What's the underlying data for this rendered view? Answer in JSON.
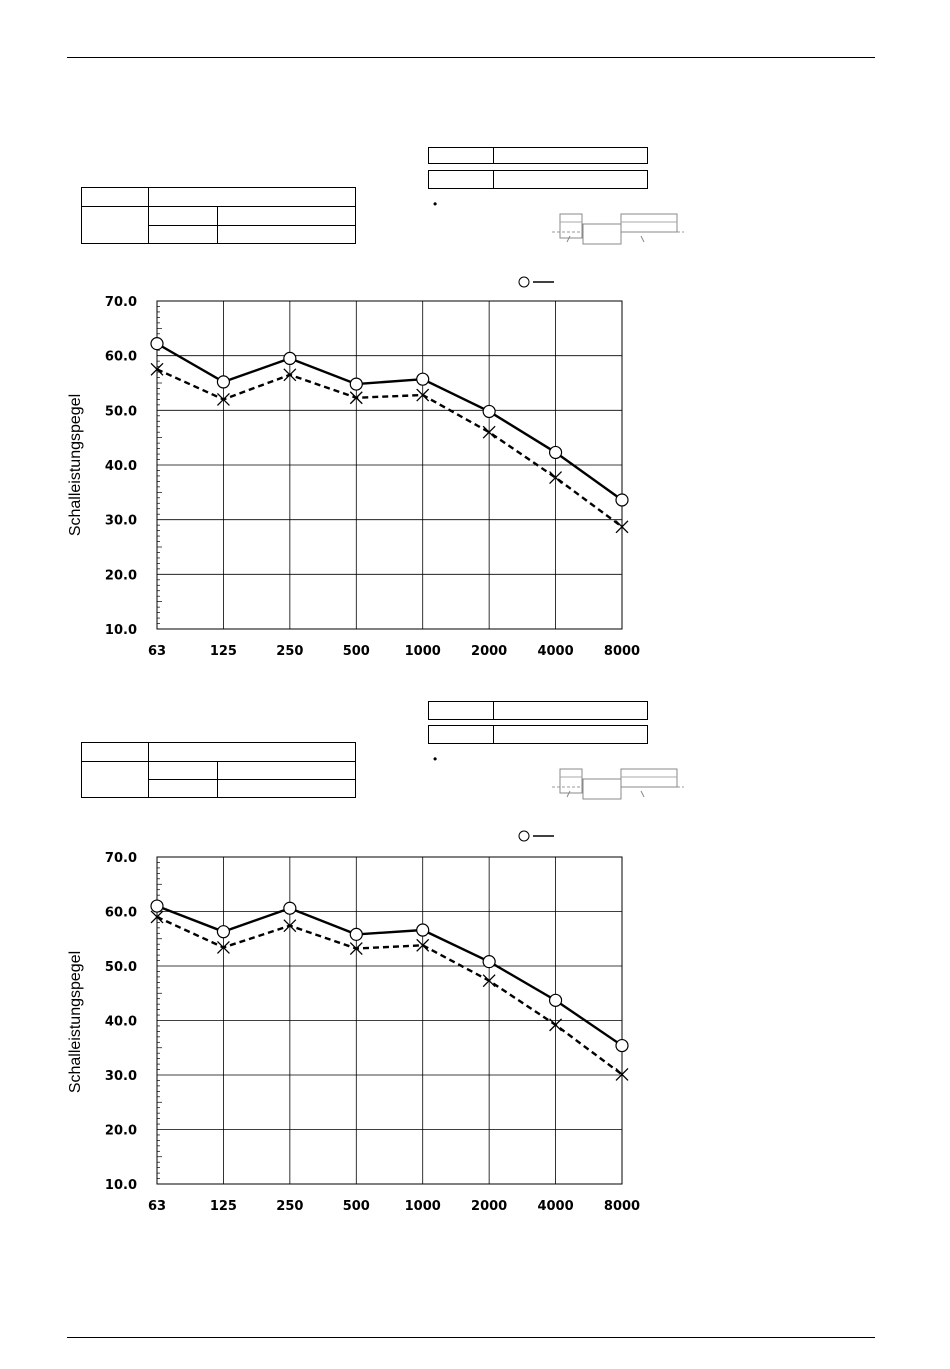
{
  "page": {
    "bullet_symbol": "•"
  },
  "chart_data": [
    {
      "type": "line",
      "ylabel": "Schalleistungspegel",
      "xlabel": "",
      "categories": [
        "63",
        "125",
        "250",
        "500",
        "1000",
        "2000",
        "4000",
        "8000"
      ],
      "y_tick_labels": [
        "70.0",
        "60.0",
        "50.0",
        "40.0",
        "30.0",
        "20.0",
        "10.0"
      ],
      "ylim": [
        10,
        70
      ],
      "grid": true,
      "series": [
        {
          "name": "",
          "style": "solid",
          "marker": "circle",
          "values": [
            62.2,
            55.2,
            59.5,
            54.8,
            55.7,
            49.8,
            42.3,
            33.6
          ]
        },
        {
          "name": "",
          "style": "dashed",
          "marker": "x",
          "values": [
            57.5,
            52.0,
            56.5,
            52.3,
            52.8,
            46.0,
            37.7,
            28.7
          ]
        }
      ]
    },
    {
      "type": "line",
      "ylabel": "Schalleistungspegel",
      "xlabel": "",
      "categories": [
        "63",
        "125",
        "250",
        "500",
        "1000",
        "2000",
        "4000",
        "8000"
      ],
      "y_tick_labels": [
        "70.0",
        "60.0",
        "50.0",
        "40.0",
        "30.0",
        "20.0",
        "10.0"
      ],
      "ylim": [
        10,
        70
      ],
      "grid": true,
      "series": [
        {
          "name": "",
          "style": "solid",
          "marker": "circle",
          "values": [
            61.0,
            56.3,
            60.6,
            55.8,
            56.6,
            50.8,
            43.7,
            35.4
          ]
        },
        {
          "name": "",
          "style": "dashed",
          "marker": "x",
          "values": [
            59.0,
            53.4,
            57.4,
            53.2,
            53.8,
            47.3,
            39.2,
            30.1
          ]
        }
      ]
    }
  ]
}
